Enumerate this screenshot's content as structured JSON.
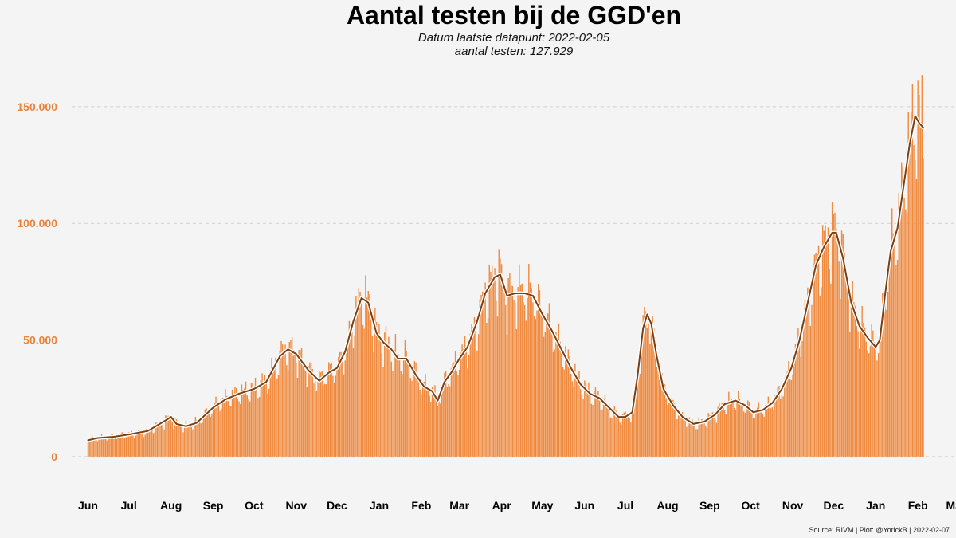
{
  "chart_data": {
    "type": "bar",
    "title": "Aantal testen bij de GGD'en",
    "subtitle": [
      "Datum laatste datapunt: 2022-02-05",
      "aantal testen: 127.929"
    ],
    "caption": "Source: RIVM | Plot: @YorickB |  2022-02-07",
    "x_start": "2020-06-01",
    "x_end": "2022-02-05",
    "xlim": [
      "2020-05-20",
      "2022-03-01"
    ],
    "ylim": [
      -12000,
      165000
    ],
    "y_ticks": [
      0,
      50000,
      100000,
      150000
    ],
    "y_tick_labels": [
      "0",
      "50.000",
      "100.000",
      "150.000"
    ],
    "x_ticks": [
      "2020-06-01",
      "2020-07-01",
      "2020-08-01",
      "2020-09-01",
      "2020-10-01",
      "2020-11-01",
      "2020-12-01",
      "2021-01-01",
      "2021-02-01",
      "2021-03-01",
      "2021-04-01",
      "2021-05-01",
      "2021-06-01",
      "2021-07-01",
      "2021-08-01",
      "2021-09-01",
      "2021-10-01",
      "2021-11-01",
      "2021-12-01",
      "2022-01-01",
      "2022-02-01",
      "2022-03-01"
    ],
    "x_tick_labels": [
      "Jun",
      "Jul",
      "Aug",
      "Sep",
      "Oct",
      "Nov",
      "Dec",
      "Jan",
      "Feb",
      "Mar",
      "Apr",
      "May",
      "Jun",
      "Jul",
      "Aug",
      "Sep",
      "Oct",
      "Nov",
      "Dec",
      "Jan",
      "Feb",
      "Mar"
    ],
    "grid": "horizontal dashed",
    "bar_color": "#f08a3e",
    "line_color": "#7b3f12",
    "trend_7day_avg": [
      [
        "2020-06-01",
        7000
      ],
      [
        "2020-06-08",
        8000
      ],
      [
        "2020-06-20",
        8500
      ],
      [
        "2020-07-01",
        9500
      ],
      [
        "2020-07-15",
        11000
      ],
      [
        "2020-07-28",
        15500
      ],
      [
        "2020-08-01",
        17000
      ],
      [
        "2020-08-05",
        14000
      ],
      [
        "2020-08-12",
        13000
      ],
      [
        "2020-08-20",
        14500
      ],
      [
        "2020-09-01",
        21000
      ],
      [
        "2020-09-10",
        24500
      ],
      [
        "2020-09-20",
        27000
      ],
      [
        "2020-10-01",
        29000
      ],
      [
        "2020-10-10",
        32000
      ],
      [
        "2020-10-20",
        43000
      ],
      [
        "2020-10-26",
        46000
      ],
      [
        "2020-11-01",
        44000
      ],
      [
        "2020-11-10",
        37000
      ],
      [
        "2020-11-18",
        32500
      ],
      [
        "2020-11-25",
        36000
      ],
      [
        "2020-12-01",
        38000
      ],
      [
        "2020-12-07",
        45000
      ],
      [
        "2020-12-13",
        58000
      ],
      [
        "2020-12-19",
        68000
      ],
      [
        "2020-12-24",
        66000
      ],
      [
        "2020-12-30",
        53000
      ],
      [
        "2021-01-04",
        49000
      ],
      [
        "2021-01-10",
        46000
      ],
      [
        "2021-01-15",
        42000
      ],
      [
        "2021-01-21",
        42000
      ],
      [
        "2021-01-28",
        35000
      ],
      [
        "2021-02-03",
        30000
      ],
      [
        "2021-02-09",
        28000
      ],
      [
        "2021-02-13",
        24000
      ],
      [
        "2021-02-18",
        32000
      ],
      [
        "2021-02-23",
        36000
      ],
      [
        "2021-03-01",
        42000
      ],
      [
        "2021-03-07",
        47000
      ],
      [
        "2021-03-14",
        58000
      ],
      [
        "2021-03-20",
        70000
      ],
      [
        "2021-03-27",
        77000
      ],
      [
        "2021-03-31",
        78000
      ],
      [
        "2021-04-05",
        69000
      ],
      [
        "2021-04-11",
        70000
      ],
      [
        "2021-04-18",
        70000
      ],
      [
        "2021-04-24",
        69000
      ],
      [
        "2021-05-01",
        61000
      ],
      [
        "2021-05-08",
        54000
      ],
      [
        "2021-05-15",
        46000
      ],
      [
        "2021-05-22",
        38000
      ],
      [
        "2021-05-29",
        31000
      ],
      [
        "2021-06-05",
        27000
      ],
      [
        "2021-06-12",
        25000
      ],
      [
        "2021-06-19",
        21000
      ],
      [
        "2021-06-26",
        17000
      ],
      [
        "2021-07-01",
        17000
      ],
      [
        "2021-07-06",
        19000
      ],
      [
        "2021-07-10",
        35000
      ],
      [
        "2021-07-14",
        55000
      ],
      [
        "2021-07-17",
        61000
      ],
      [
        "2021-07-20",
        57000
      ],
      [
        "2021-07-24",
        43000
      ],
      [
        "2021-07-29",
        29000
      ],
      [
        "2021-08-05",
        22000
      ],
      [
        "2021-08-12",
        17000
      ],
      [
        "2021-08-20",
        14000
      ],
      [
        "2021-08-28",
        15000
      ],
      [
        "2021-09-05",
        18000
      ],
      [
        "2021-09-12",
        22500
      ],
      [
        "2021-09-20",
        24000
      ],
      [
        "2021-09-27",
        22000
      ],
      [
        "2021-10-03",
        19000
      ],
      [
        "2021-10-10",
        20000
      ],
      [
        "2021-10-17",
        23000
      ],
      [
        "2021-10-24",
        29000
      ],
      [
        "2021-10-31",
        38000
      ],
      [
        "2021-11-06",
        50000
      ],
      [
        "2021-11-12",
        66000
      ],
      [
        "2021-11-18",
        82000
      ],
      [
        "2021-11-24",
        90000
      ],
      [
        "2021-11-30",
        96000
      ],
      [
        "2021-12-03",
        96000
      ],
      [
        "2021-12-08",
        85000
      ],
      [
        "2021-12-14",
        66000
      ],
      [
        "2021-12-20",
        56000
      ],
      [
        "2021-12-26",
        51000
      ],
      [
        "2022-01-01",
        47000
      ],
      [
        "2022-01-04",
        50000
      ],
      [
        "2022-01-08",
        70000
      ],
      [
        "2022-01-12",
        88000
      ],
      [
        "2022-01-17",
        98000
      ],
      [
        "2022-01-22",
        118000
      ],
      [
        "2022-01-26",
        134000
      ],
      [
        "2022-01-30",
        146000
      ],
      [
        "2022-02-02",
        143000
      ],
      [
        "2022-02-05",
        141000
      ]
    ]
  }
}
